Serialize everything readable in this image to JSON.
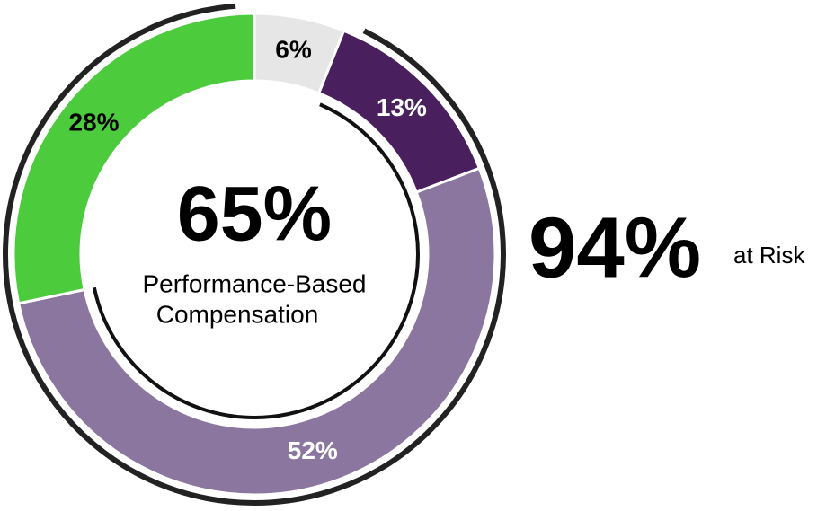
{
  "chart_data": {
    "type": "donut",
    "values": [
      6,
      13,
      52,
      28
    ],
    "value_labels": [
      "6%",
      "13%",
      "52%",
      "28%"
    ],
    "colors": [
      "#e6e6e6",
      "#4a1f5e",
      "#8b769f",
      "#4ccb3d"
    ],
    "label_colors": [
      "#000000",
      "#ffffff",
      "#ffffff",
      "#000000"
    ],
    "center_value": "65%",
    "center_label": [
      "Performance-Based",
      "Compensation"
    ],
    "side_value": "94%",
    "side_label": "at Risk"
  }
}
